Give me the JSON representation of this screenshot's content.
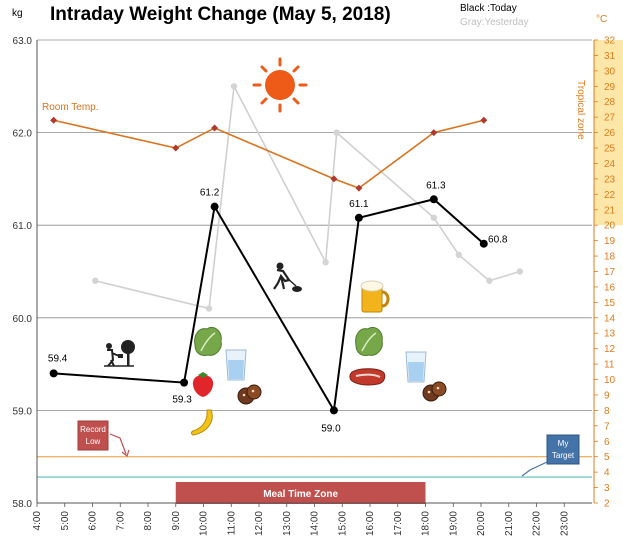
{
  "chart_data": {
    "type": "line",
    "title": "Intraday Weight Change (May 5, 2018)",
    "left_unit": "kg",
    "right_unit": "°C",
    "legend": {
      "today": "Black :Today",
      "yesterday": "Gray:Yesterday"
    },
    "x_ticks": [
      "4:00",
      "5:00",
      "6:00",
      "7:00",
      "8:00",
      "9:00",
      "10:00",
      "11:00",
      "12:00",
      "13:00",
      "14:00",
      "15:00",
      "16:00",
      "17:00",
      "18:00",
      "19:00",
      "20:00",
      "21:00",
      "22:00",
      "23:00"
    ],
    "y_left": {
      "ylim": [
        58.0,
        63.0
      ],
      "ticks": [
        "58.0",
        "59.0",
        "60.0",
        "61.0",
        "62.0",
        "63.0"
      ]
    },
    "y_right": {
      "ylim": [
        2,
        32
      ],
      "ticks": [
        "2",
        "3",
        "4",
        "5",
        "6",
        "7",
        "8",
        "9",
        "10",
        "11",
        "12",
        "13",
        "14",
        "15",
        "16",
        "17",
        "18",
        "19",
        "20",
        "21",
        "22",
        "23",
        "24",
        "25",
        "26",
        "27",
        "28",
        "29",
        "30",
        "31",
        "32"
      ]
    },
    "series": [
      {
        "name": "Today",
        "color": "#000000",
        "axis": "left",
        "points": [
          {
            "x": 4.6,
            "y": 59.4,
            "label": "59.4"
          },
          {
            "x": 9.3,
            "y": 59.3,
            "label": "59.3"
          },
          {
            "x": 10.4,
            "y": 61.2,
            "label": "61.2"
          },
          {
            "x": 14.7,
            "y": 59.0,
            "label": "59.0"
          },
          {
            "x": 15.6,
            "y": 61.08,
            "label": "61.1"
          },
          {
            "x": 18.3,
            "y": 61.28,
            "label": "61.3"
          },
          {
            "x": 20.1,
            "y": 60.8,
            "label": "60.8"
          }
        ]
      },
      {
        "name": "Yesterday",
        "color": "#d0d0d0",
        "axis": "left",
        "points": [
          {
            "x": 6.1,
            "y": 60.4
          },
          {
            "x": 10.2,
            "y": 60.1
          },
          {
            "x": 11.1,
            "y": 62.5
          },
          {
            "x": 14.4,
            "y": 60.6
          },
          {
            "x": 14.8,
            "y": 62.0
          },
          {
            "x": 18.3,
            "y": 61.08
          },
          {
            "x": 19.2,
            "y": 60.68
          },
          {
            "x": 20.3,
            "y": 60.4
          },
          {
            "x": 21.4,
            "y": 60.5
          }
        ]
      },
      {
        "name": "Room Temp.",
        "color": "#d9731e",
        "axis": "right",
        "points": [
          {
            "x": 4.6,
            "y": 26.8
          },
          {
            "x": 9.0,
            "y": 25.0
          },
          {
            "x": 10.4,
            "y": 26.3
          },
          {
            "x": 14.7,
            "y": 23.0
          },
          {
            "x": 15.6,
            "y": 22.4
          },
          {
            "x": 18.3,
            "y": 26.0
          },
          {
            "x": 20.1,
            "y": 26.8
          }
        ]
      }
    ],
    "reference_lines": [
      {
        "name": "Record Low",
        "y": 58.5,
        "color": "#f2b36b"
      },
      {
        "name": "My Target",
        "y": 58.28,
        "color": "#79c8c8"
      }
    ],
    "tropical_zone": {
      "label": "Tropical zone",
      "from": 20,
      "to": 32,
      "color": "#fde7a8"
    },
    "meal_time_zone": {
      "label": "Meal Time Zone",
      "from": 9.0,
      "to": 18.0,
      "color": "#c0504d"
    },
    "callouts": {
      "record_low": "Record\nLow",
      "my_target": "My\nTarget",
      "room_temp": "Room Temp."
    },
    "icons": [
      "sun-icon",
      "tree-watering-icon",
      "gardening-icon",
      "lettuce-icon",
      "strawberry-icon",
      "banana-icon",
      "water-glass-icon",
      "cookies-icon",
      "beer-icon",
      "lettuce-icon",
      "steak-icon",
      "water-glass-icon",
      "cookies-icon"
    ],
    "grid": true
  }
}
